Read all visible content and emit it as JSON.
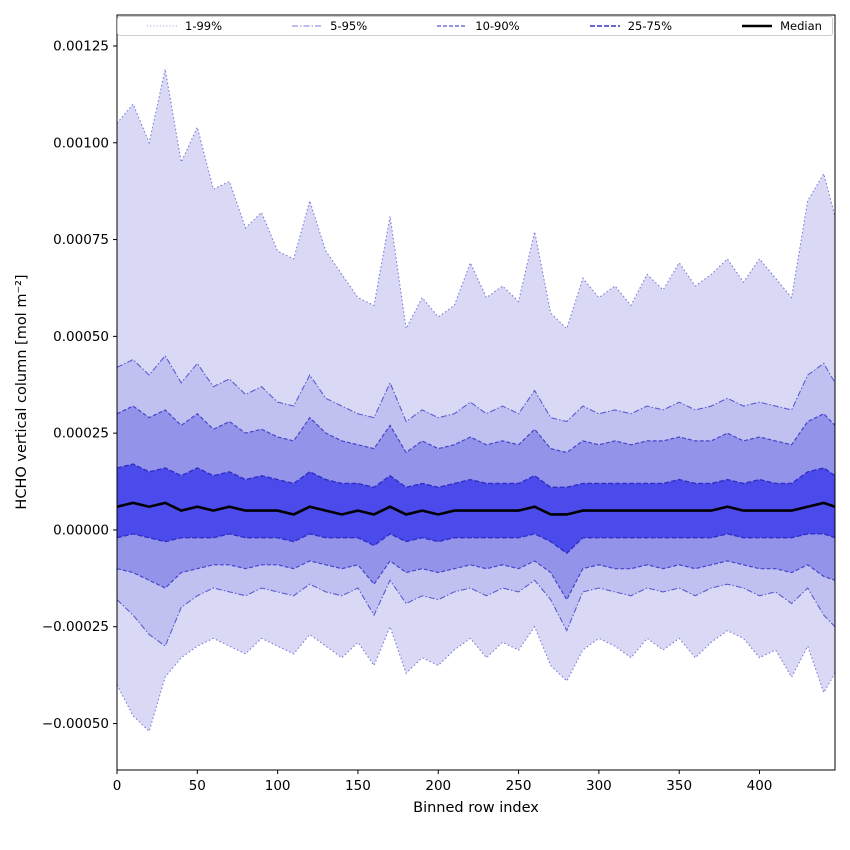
{
  "figure": {
    "xlabel": "Binned row index",
    "ylabel": "HCHO vertical column [mol m⁻²]"
  },
  "chart_data": {
    "type": "area",
    "title": "",
    "xlabel": "Binned row index",
    "ylabel": "HCHO vertical column [mol m⁻²]",
    "legend_position": "top, horizontal, inside axes",
    "grid": false,
    "xlim": [
      0,
      447
    ],
    "ylim": [
      -0.00062,
      0.00133
    ],
    "xticks": [
      0,
      50,
      100,
      150,
      200,
      250,
      300,
      350,
      400
    ],
    "yticks": {
      "values": [
        -0.0005,
        -0.00025,
        0.0,
        0.00025,
        0.0005,
        0.00075,
        0.001,
        0.00125
      ],
      "labels": [
        "−0.00050",
        "−0.00025",
        "0.00000",
        "0.00025",
        "0.00050",
        "0.00075",
        "0.00100",
        "0.00125"
      ]
    },
    "legend": [
      {
        "label": "1-99%"
      },
      {
        "label": "5-95%"
      },
      {
        "label": "10-90%"
      },
      {
        "label": "25-75%"
      },
      {
        "label": "Median"
      }
    ],
    "value_scale": 1e-05,
    "x": [
      0,
      10,
      20,
      30,
      40,
      50,
      60,
      70,
      80,
      90,
      100,
      110,
      120,
      130,
      140,
      150,
      160,
      170,
      180,
      190,
      200,
      210,
      220,
      230,
      240,
      250,
      260,
      270,
      280,
      290,
      300,
      310,
      320,
      330,
      340,
      350,
      360,
      370,
      380,
      390,
      400,
      410,
      420,
      430,
      440,
      447
    ],
    "percentiles": {
      "p99": [
        105,
        110,
        100,
        119,
        95,
        104,
        88,
        90,
        78,
        82,
        72,
        70,
        85,
        72,
        66,
        60,
        58,
        81,
        52,
        60,
        55,
        58,
        69,
        60,
        63,
        59,
        77,
        56,
        52,
        65,
        60,
        63,
        58,
        66,
        62,
        69,
        63,
        66,
        70,
        64,
        70,
        65,
        60,
        85,
        92,
        81
      ],
      "p95": [
        42,
        44,
        40,
        45,
        38,
        43,
        37,
        39,
        35,
        37,
        33,
        32,
        40,
        34,
        32,
        30,
        29,
        38,
        28,
        31,
        29,
        30,
        33,
        30,
        32,
        30,
        36,
        29,
        28,
        32,
        30,
        31,
        30,
        32,
        31,
        33,
        31,
        32,
        34,
        32,
        33,
        32,
        31,
        40,
        43,
        38
      ],
      "p90": [
        30,
        32,
        29,
        31,
        27,
        30,
        26,
        28,
        25,
        26,
        24,
        23,
        29,
        25,
        23,
        22,
        21,
        27,
        20,
        23,
        21,
        22,
        24,
        22,
        23,
        22,
        26,
        21,
        20,
        23,
        22,
        23,
        22,
        23,
        23,
        24,
        23,
        23,
        25,
        23,
        24,
        23,
        22,
        28,
        30,
        27
      ],
      "p75": [
        16,
        17,
        15,
        16,
        14,
        16,
        14,
        15,
        13,
        14,
        13,
        12,
        15,
        13,
        12,
        12,
        11,
        14,
        11,
        12,
        11,
        12,
        13,
        12,
        12,
        12,
        14,
        11,
        11,
        12,
        12,
        12,
        12,
        12,
        12,
        13,
        12,
        12,
        13,
        12,
        13,
        12,
        12,
        15,
        16,
        14
      ],
      "p25": [
        -2,
        -1,
        -2,
        -3,
        -2,
        -2,
        -2,
        -1,
        -2,
        -2,
        -2,
        -3,
        -1,
        -2,
        -2,
        -2,
        -4,
        -1,
        -3,
        -2,
        -3,
        -2,
        -2,
        -2,
        -2,
        -2,
        -1,
        -3,
        -6,
        -2,
        -2,
        -2,
        -2,
        -2,
        -2,
        -2,
        -2,
        -2,
        -1,
        -2,
        -2,
        -2,
        -2,
        -1,
        -1,
        -2
      ],
      "p10": [
        -10,
        -11,
        -13,
        -15,
        -11,
        -10,
        -9,
        -9,
        -10,
        -9,
        -9,
        -10,
        -8,
        -9,
        -10,
        -9,
        -14,
        -8,
        -11,
        -10,
        -11,
        -10,
        -9,
        -10,
        -9,
        -10,
        -8,
        -11,
        -18,
        -10,
        -9,
        -10,
        -10,
        -9,
        -10,
        -9,
        -10,
        -9,
        -8,
        -9,
        -10,
        -10,
        -11,
        -9,
        -12,
        -13
      ],
      "p5": [
        -18,
        -22,
        -27,
        -30,
        -20,
        -17,
        -15,
        -16,
        -17,
        -15,
        -16,
        -17,
        -14,
        -16,
        -17,
        -15,
        -22,
        -13,
        -19,
        -17,
        -18,
        -16,
        -15,
        -17,
        -15,
        -16,
        -13,
        -18,
        -26,
        -16,
        -15,
        -16,
        -17,
        -15,
        -16,
        -15,
        -17,
        -15,
        -14,
        -15,
        -17,
        -16,
        -19,
        -15,
        -22,
        -25
      ],
      "p1": [
        -40,
        -48,
        -52,
        -38,
        -33,
        -30,
        -28,
        -30,
        -32,
        -28,
        -30,
        -32,
        -27,
        -30,
        -33,
        -29,
        -35,
        -25,
        -37,
        -33,
        -35,
        -31,
        -28,
        -33,
        -29,
        -31,
        -25,
        -35,
        -39,
        -31,
        -28,
        -30,
        -33,
        -28,
        -31,
        -28,
        -33,
        -29,
        -26,
        -28,
        -33,
        -31,
        -38,
        -30,
        -42,
        -37
      ]
    },
    "median": [
      6,
      7,
      6,
      7,
      5,
      6,
      5,
      6,
      5,
      5,
      5,
      4,
      6,
      5,
      4,
      5,
      4,
      6,
      4,
      5,
      4,
      5,
      5,
      5,
      5,
      5,
      6,
      4,
      4,
      5,
      5,
      5,
      5,
      5,
      5,
      5,
      5,
      5,
      6,
      5,
      5,
      5,
      5,
      6,
      7,
      6
    ],
    "bands": [
      {
        "name": "1-99",
        "low": "p1",
        "high": "p99",
        "fill": "#d9d9f6"
      },
      {
        "name": "5-95",
        "low": "p5",
        "high": "p95",
        "fill": "#c1c1f1"
      },
      {
        "name": "10-90",
        "low": "p10",
        "high": "p90",
        "fill": "#9393ea"
      },
      {
        "name": "25-75",
        "low": "p25",
        "high": "p75",
        "fill": "#4b4bec"
      }
    ],
    "lines": [
      {
        "key": "p1",
        "color": "#7a7ad9",
        "width": 1.1,
        "dash": "1.5 2.4"
      },
      {
        "key": "p99",
        "color": "#7a7ad9",
        "width": 1.1,
        "dash": "1.5 2.4"
      },
      {
        "key": "p5",
        "color": "#5c5cd3",
        "width": 1.1,
        "dash": "6 2 1.5 2"
      },
      {
        "key": "p95",
        "color": "#5c5cd3",
        "width": 1.1,
        "dash": "6 2 1.5 2"
      },
      {
        "key": "p10",
        "color": "#4545cd",
        "width": 1.2,
        "dash": "4 2"
      },
      {
        "key": "p90",
        "color": "#4545cd",
        "width": 1.2,
        "dash": "4 2"
      },
      {
        "key": "p25",
        "color": "#2f2fc8",
        "width": 1.4,
        "dash": "5 2"
      },
      {
        "key": "p75",
        "color": "#2f2fc8",
        "width": 1.4,
        "dash": "5 2"
      }
    ],
    "median_style": {
      "color": "#000000",
      "width": 2.6
    },
    "axis_color": "#000000",
    "background": "#ffffff"
  }
}
